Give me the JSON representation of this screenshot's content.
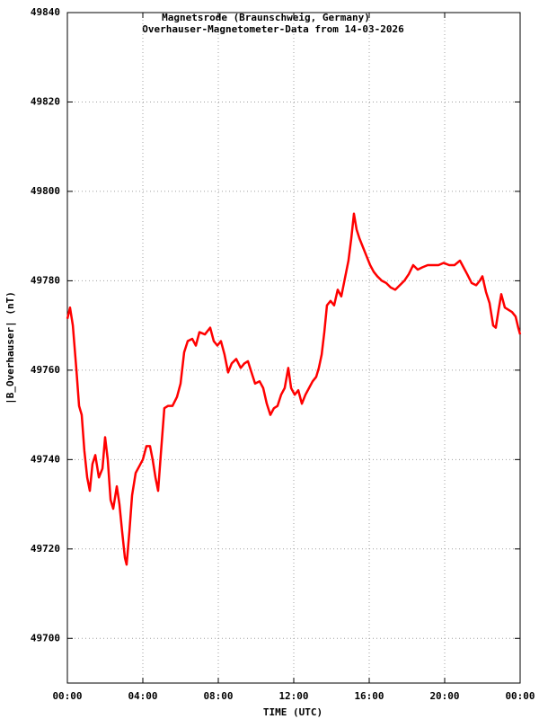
{
  "chart_data": {
    "type": "line",
    "title": "Magnetsrode (Braunschweig, Germany)",
    "subtitle": "Overhauser-Magnetometer-Data from 14-03-2026",
    "x_label": "TIME (UTC)",
    "y_label": "|B_Overhauser| (nT)",
    "color": "#ff0000",
    "grid": true,
    "xlim": [
      0,
      24
    ],
    "xticks": [
      {
        "value": 0,
        "label": "00:00"
      },
      {
        "value": 4,
        "label": "04:00"
      },
      {
        "value": 8,
        "label": "08:00"
      },
      {
        "value": 12,
        "label": "12:00"
      },
      {
        "value": 16,
        "label": "16:00"
      },
      {
        "value": 20,
        "label": "20:00"
      },
      {
        "value": 24,
        "label": "00:00"
      }
    ],
    "ylim": [
      49690,
      49840
    ],
    "yticks": [
      49700,
      49720,
      49740,
      49760,
      49780,
      49800,
      49820,
      49840
    ],
    "x": [
      0,
      0.14,
      0.29,
      0.48,
      0.62,
      0.76,
      0.9,
      1.05,
      1.19,
      1.33,
      1.48,
      1.67,
      1.86,
      2.0,
      2.14,
      2.29,
      2.43,
      2.62,
      2.76,
      2.9,
      3.05,
      3.14,
      3.29,
      3.43,
      3.62,
      3.81,
      4.0,
      4.19,
      4.38,
      4.52,
      4.67,
      4.81,
      4.95,
      5.14,
      5.33,
      5.57,
      5.81,
      6.0,
      6.19,
      6.38,
      6.62,
      6.81,
      7.0,
      7.29,
      7.57,
      7.76,
      7.95,
      8.14,
      8.33,
      8.52,
      8.71,
      8.95,
      9.19,
      9.38,
      9.57,
      9.76,
      9.95,
      10.19,
      10.38,
      10.57,
      10.76,
      10.95,
      11.14,
      11.33,
      11.52,
      11.71,
      11.86,
      12.05,
      12.24,
      12.43,
      12.62,
      12.81,
      13.0,
      13.19,
      13.33,
      13.48,
      13.62,
      13.76,
      13.95,
      14.14,
      14.33,
      14.52,
      14.71,
      14.9,
      15.05,
      15.19,
      15.33,
      15.48,
      15.67,
      15.86,
      16.05,
      16.24,
      16.43,
      16.67,
      16.9,
      17.14,
      17.38,
      17.62,
      17.86,
      18.1,
      18.33,
      18.57,
      18.81,
      19.1,
      19.38,
      19.67,
      19.95,
      20.24,
      20.52,
      20.81,
      21.0,
      21.19,
      21.43,
      21.67,
      21.86,
      22.0,
      22.19,
      22.38,
      22.57,
      22.71,
      22.86,
      23.0,
      23.19,
      23.38,
      23.57,
      23.76,
      23.9,
      24.0
    ],
    "values": [
      49771.5,
      49774,
      49770,
      49760,
      49752,
      49750,
      49742,
      49736,
      49733,
      49739,
      49741,
      49736,
      49738,
      49745,
      49740,
      49731,
      49729,
      49734,
      49730,
      49724,
      49718,
      49716.5,
      49724,
      49732,
      49737,
      49738.5,
      49740,
      49743,
      49743,
      49740,
      49736,
      49733,
      49741,
      49751.5,
      49752,
      49752,
      49754,
      49757,
      49764,
      49766.5,
      49767,
      49765.5,
      49768.5,
      49768,
      49769.5,
      49766.5,
      49765.5,
      49766.5,
      49763.5,
      49759.5,
      49761.5,
      49762.5,
      49760.5,
      49761.5,
      49762,
      49759.5,
      49757,
      49757.5,
      49756,
      49752.5,
      49750,
      49751.5,
      49752,
      49754.5,
      49756,
      49760.5,
      49756,
      49754.5,
      49755.5,
      49752.5,
      49754.5,
      49756,
      49757.5,
      49758.5,
      49760.5,
      49763.5,
      49768.5,
      49774.5,
      49775.5,
      49774.5,
      49778,
      49776.5,
      49780.5,
      49784.5,
      49789.5,
      49795,
      49791.5,
      49789.5,
      49787.5,
      49785.5,
      49783.5,
      49782,
      49781,
      49780,
      49779.5,
      49778.5,
      49778,
      49779,
      49780,
      49781.5,
      49783.5,
      49782.5,
      49783,
      49783.5,
      49783.5,
      49783.5,
      49784,
      49783.5,
      49783.5,
      49784.5,
      49783,
      49781.5,
      49779.5,
      49779,
      49780,
      49781,
      49777.5,
      49775,
      49770,
      49769.5,
      49773.5,
      49777,
      49774,
      49773.5,
      49773,
      49772,
      49769.5,
      49768
    ]
  }
}
